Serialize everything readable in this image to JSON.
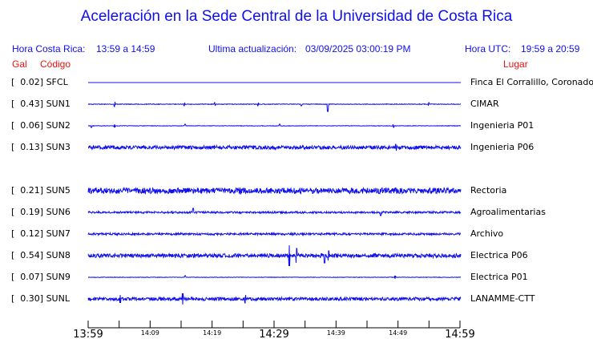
{
  "title": "Aceleración en la Sede Central de la Universidad de Costa Rica",
  "header": {
    "local_label": "Hora Costa Rica:",
    "local_range": "13:59 a 14:59",
    "update_label": "Ultima actualización:",
    "update_value": "03/09/2025 03:00:19 PM",
    "utc_label": "Hora UTC:",
    "utc_range": "19:59 a 20:59",
    "col_gal": "Gal",
    "col_code": "Código",
    "col_place": "Lugar"
  },
  "colors": {
    "trace": "#1010ee",
    "header_blue": "#1010ee",
    "header_red": "#ee1010"
  },
  "stations": [
    {
      "gal": "0.02",
      "code": "SFCL",
      "place": "Finca El Corralillo, Coronado"
    },
    {
      "gal": "0.43",
      "code": "SUN1",
      "place": "CIMAR"
    },
    {
      "gal": "0.06",
      "code": "SUN2",
      "place": "Ingenieria P01"
    },
    {
      "gal": "0.13",
      "code": "SUN3",
      "place": "Ingenieria P06"
    },
    {
      "gal": "0.21",
      "code": "SUN5",
      "place": "Rectoria"
    },
    {
      "gal": "0.19",
      "code": "SUN6",
      "place": "Agroalimentarias"
    },
    {
      "gal": "0.12",
      "code": "SUN7",
      "place": "Archivo"
    },
    {
      "gal": "0.54",
      "code": "SUN8",
      "place": "Electrica P06"
    },
    {
      "gal": "0.07",
      "code": "SUN9",
      "place": "Electrica P01"
    },
    {
      "gal": "0.30",
      "code": "SUNL",
      "place": "LANAMME-CTT"
    }
  ],
  "axis": {
    "major_labels": [
      "13:59",
      "14:29",
      "14:59"
    ],
    "minor_labels": [
      "14:09",
      "14:19",
      "14:39",
      "14:49"
    ]
  }
}
